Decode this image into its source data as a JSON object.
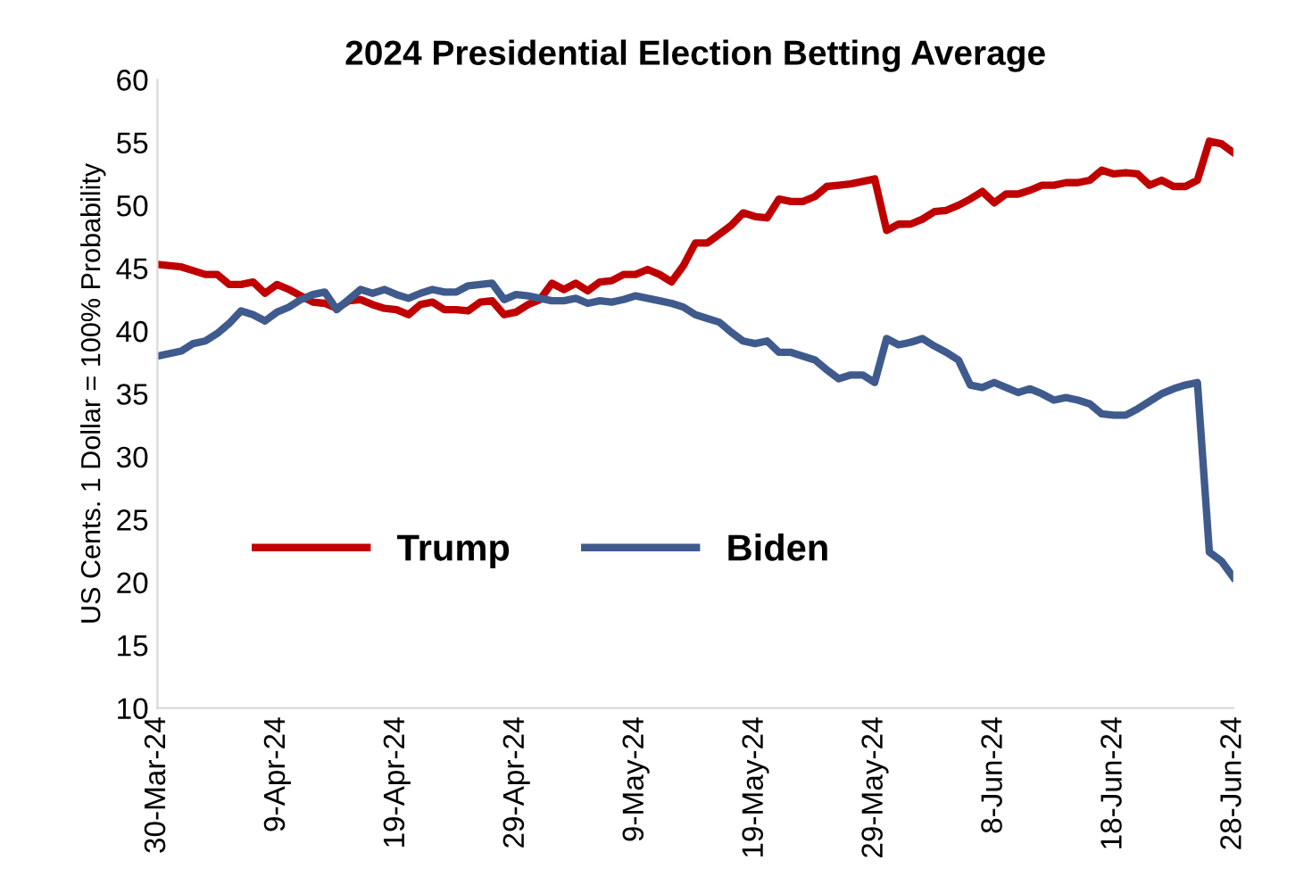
{
  "chart_data": {
    "type": "line",
    "title": "2024 Presidential Election Betting Average",
    "ylabel": "US Cents. 1 Dollar = 100% Probability",
    "x": [
      "2024-03-30",
      "2024-04-01",
      "2024-04-02",
      "2024-04-03",
      "2024-04-04",
      "2024-04-05",
      "2024-04-06",
      "2024-04-07",
      "2024-04-08",
      "2024-04-09",
      "2024-04-10",
      "2024-04-11",
      "2024-04-12",
      "2024-04-13",
      "2024-04-14",
      "2024-04-15",
      "2024-04-16",
      "2024-04-17",
      "2024-04-18",
      "2024-04-19",
      "2024-04-20",
      "2024-04-21",
      "2024-04-22",
      "2024-04-23",
      "2024-04-24",
      "2024-04-25",
      "2024-04-26",
      "2024-04-27",
      "2024-04-28",
      "2024-04-29",
      "2024-04-30",
      "2024-05-01",
      "2024-05-02",
      "2024-05-03",
      "2024-05-04",
      "2024-05-05",
      "2024-05-06",
      "2024-05-07",
      "2024-05-08",
      "2024-05-09",
      "2024-05-10",
      "2024-05-11",
      "2024-05-12",
      "2024-05-13",
      "2024-05-14",
      "2024-05-15",
      "2024-05-16",
      "2024-05-17",
      "2024-05-18",
      "2024-05-19",
      "2024-05-20",
      "2024-05-21",
      "2024-05-22",
      "2024-05-23",
      "2024-05-24",
      "2024-05-25",
      "2024-05-26",
      "2024-05-27",
      "2024-05-28",
      "2024-05-29",
      "2024-05-30",
      "2024-05-31",
      "2024-06-01",
      "2024-06-02",
      "2024-06-03",
      "2024-06-04",
      "2024-06-05",
      "2024-06-06",
      "2024-06-07",
      "2024-06-08",
      "2024-06-09",
      "2024-06-10",
      "2024-06-11",
      "2024-06-12",
      "2024-06-13",
      "2024-06-14",
      "2024-06-15",
      "2024-06-16",
      "2024-06-17",
      "2024-06-18",
      "2024-06-19",
      "2024-06-20",
      "2024-06-21",
      "2024-06-22",
      "2024-06-23",
      "2024-06-24",
      "2024-06-25",
      "2024-06-26",
      "2024-06-27",
      "2024-06-28"
    ],
    "series": [
      {
        "name": "Trump",
        "color": "#c00000",
        "values": [
          45.3,
          45.1,
          44.8,
          44.5,
          44.5,
          43.7,
          43.7,
          43.9,
          43.0,
          43.7,
          43.3,
          42.8,
          42.3,
          42.2,
          41.8,
          42.4,
          42.5,
          42.1,
          41.8,
          41.7,
          41.3,
          42.1,
          42.3,
          41.7,
          41.7,
          41.6,
          42.3,
          42.4,
          41.3,
          41.5,
          42.1,
          42.5,
          43.8,
          43.3,
          43.8,
          43.2,
          43.9,
          44.0,
          44.5,
          44.5,
          44.9,
          44.5,
          43.9,
          45.2,
          47.0,
          47.0,
          47.7,
          48.4,
          49.4,
          49.1,
          49.0,
          50.5,
          50.3,
          50.3,
          50.7,
          51.5,
          51.6,
          51.7,
          51.9,
          52.1,
          48.0,
          48.5,
          48.5,
          48.9,
          49.5,
          49.6,
          50.0,
          50.5,
          51.1,
          50.2,
          50.9,
          50.9,
          51.2,
          51.6,
          51.6,
          51.8,
          51.8,
          52.0,
          52.8,
          52.5,
          52.6,
          52.5,
          51.6,
          52.0,
          51.5,
          51.5,
          52.0,
          55.1,
          54.9,
          54.2
        ]
      },
      {
        "name": "Biden",
        "color": "#3f5a8c",
        "values": [
          38.0,
          38.4,
          39.0,
          39.2,
          39.8,
          40.6,
          41.6,
          41.3,
          40.8,
          41.5,
          41.9,
          42.5,
          42.9,
          43.1,
          41.7,
          42.5,
          43.3,
          43.0,
          43.3,
          42.9,
          42.6,
          43.0,
          43.3,
          43.1,
          43.1,
          43.6,
          43.7,
          43.8,
          42.5,
          42.9,
          42.8,
          42.6,
          42.4,
          42.4,
          42.6,
          42.2,
          42.4,
          42.3,
          42.5,
          42.8,
          42.6,
          42.4,
          42.2,
          41.9,
          41.3,
          41.0,
          40.7,
          39.9,
          39.2,
          39.0,
          39.2,
          38.3,
          38.3,
          38.0,
          37.7,
          36.9,
          36.2,
          36.5,
          36.5,
          35.9,
          39.4,
          38.9,
          39.1,
          39.4,
          38.8,
          38.3,
          37.7,
          35.7,
          35.5,
          35.9,
          35.5,
          35.1,
          35.4,
          35.0,
          34.5,
          34.7,
          34.5,
          34.2,
          33.4,
          33.3,
          33.3,
          33.8,
          34.4,
          35.0,
          35.4,
          35.7,
          35.9,
          22.4,
          21.7,
          20.4
        ]
      }
    ],
    "xlim": [
      "2024-03-30",
      "2024-06-28"
    ],
    "xticks": [
      {
        "value": "2024-03-30",
        "label": "30-Mar-24"
      },
      {
        "value": "2024-04-09",
        "label": "9-Apr-24"
      },
      {
        "value": "2024-04-19",
        "label": "19-Apr-24"
      },
      {
        "value": "2024-04-29",
        "label": "29-Apr-24"
      },
      {
        "value": "2024-05-09",
        "label": "9-May-24"
      },
      {
        "value": "2024-05-19",
        "label": "19-May-24"
      },
      {
        "value": "2024-05-29",
        "label": "29-May-24"
      },
      {
        "value": "2024-06-08",
        "label": "8-Jun-24"
      },
      {
        "value": "2024-06-18",
        "label": "18-Jun-24"
      },
      {
        "value": "2024-06-28",
        "label": "28-Jun-24"
      }
    ],
    "ylim": [
      10,
      60
    ],
    "yticks": [
      10,
      15,
      20,
      25,
      30,
      35,
      40,
      45,
      50,
      55,
      60
    ],
    "legend": "left",
    "grid": false,
    "marker": "none",
    "line_style": "solid"
  }
}
